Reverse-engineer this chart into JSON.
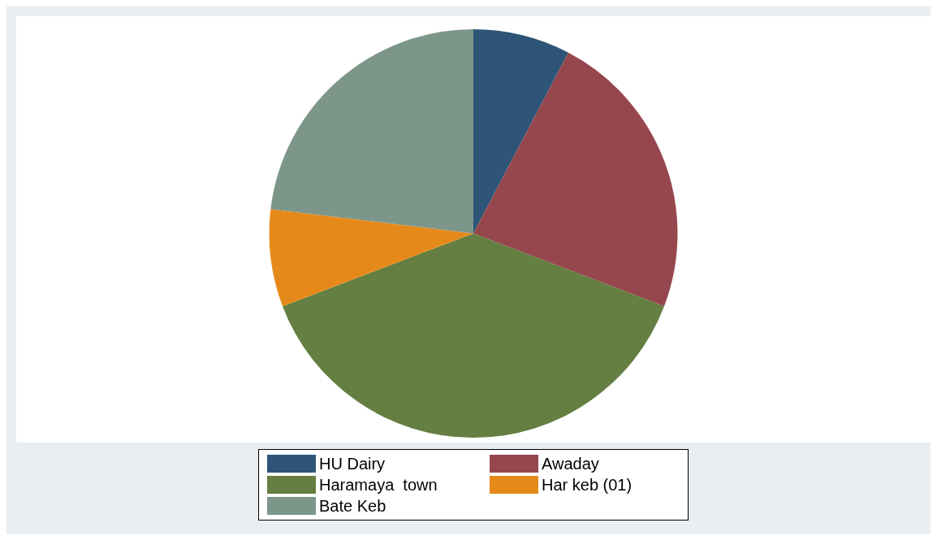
{
  "chart_data": {
    "type": "pie",
    "categories": [
      "HU Dairy",
      "Awaday",
      "Haramaya  town",
      "Har keb (01)",
      "Bate Keb"
    ],
    "values": [
      7.7,
      23.1,
      38.4,
      7.7,
      23.1
    ],
    "colors": [
      "#2e5577",
      "#96474d",
      "#647f41",
      "#e58a1a",
      "#7d968a"
    ],
    "legend": "bottom"
  }
}
